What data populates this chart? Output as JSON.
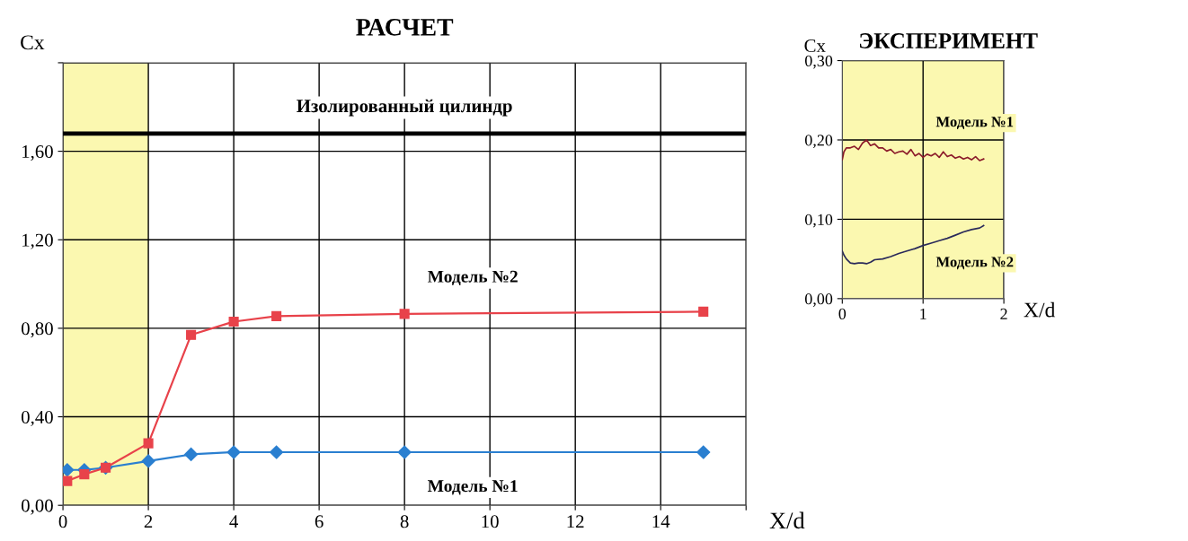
{
  "chart_data": [
    {
      "type": "line",
      "title": "РАСЧЕТ",
      "xlabel": "X/d",
      "ylabel": "Cx",
      "marker": "square",
      "grid": true,
      "legend": false,
      "xlim": [
        0,
        16
      ],
      "xticks": [
        0,
        2,
        4,
        6,
        8,
        10,
        12,
        14,
        {
          "value": 16,
          "label": null
        }
      ],
      "ylim": [
        0,
        2.0
      ],
      "yticks": [
        {
          "value": 0,
          "label": "0,00"
        },
        {
          "value": 0.4,
          "label": "0,40"
        },
        {
          "value": 0.8,
          "label": "0,80"
        },
        {
          "value": 1.2,
          "label": "1,20"
        },
        {
          "value": 1.6,
          "label": "1,60"
        },
        {
          "value": 2.0,
          "label": null
        }
      ],
      "ref_lines": [
        {
          "axis": "y",
          "value": 1.68,
          "label": "Изолированный цилиндр",
          "color": "#000000"
        }
      ],
      "bands": [
        {
          "axis": "x",
          "from": 0,
          "to": 2,
          "color": "#fbf8b0"
        }
      ],
      "series": [
        {
          "name": "Модель №2",
          "color": "#e8424a",
          "marker": "square",
          "x": [
            0.1,
            0.5,
            1,
            2,
            3,
            4,
            5,
            8,
            15
          ],
          "values": [
            0.11,
            0.14,
            0.17,
            0.28,
            0.77,
            0.83,
            0.855,
            0.865,
            0.875
          ]
        },
        {
          "name": "Модель №1",
          "color": "#2a7fd0",
          "marker": "diamond",
          "x": [
            0.1,
            0.5,
            1,
            2,
            3,
            4,
            5,
            8,
            15
          ],
          "values": [
            0.16,
            0.16,
            0.17,
            0.2,
            0.23,
            0.24,
            0.24,
            0.24,
            0.24
          ]
        }
      ]
    },
    {
      "type": "line",
      "title": "ЭКСПЕРИМЕНТ",
      "xlabel": "X/d",
      "ylabel": "Cx",
      "marker": "none",
      "grid": true,
      "legend": false,
      "xlim": [
        0,
        2
      ],
      "xticks": [
        0,
        1,
        2
      ],
      "ylim": [
        0,
        0.3
      ],
      "yticks": [
        {
          "value": 0,
          "label": "0,00"
        },
        {
          "value": 0.1,
          "label": "0,10"
        },
        {
          "value": 0.2,
          "label": "0,20"
        },
        {
          "value": 0.3,
          "label": "0,30"
        }
      ],
      "bands": [
        {
          "axis": "x",
          "from": 0,
          "to": 2,
          "color": "#fbf8b0"
        }
      ],
      "series": [
        {
          "name": "Модель №1",
          "color": "#8b1a2a",
          "x": [
            0,
            0.02,
            0.05,
            0.1,
            0.15,
            0.2,
            0.25,
            0.3,
            0.35,
            0.4,
            0.45,
            0.5,
            0.55,
            0.6,
            0.65,
            0.7,
            0.75,
            0.8,
            0.85,
            0.9,
            0.95,
            1.0,
            1.05,
            1.1,
            1.15,
            1.2,
            1.25,
            1.3,
            1.35,
            1.4,
            1.45,
            1.5,
            1.55,
            1.6,
            1.65,
            1.7,
            1.75
          ],
          "values": [
            0.175,
            0.185,
            0.19,
            0.19,
            0.192,
            0.188,
            0.196,
            0.2,
            0.193,
            0.195,
            0.19,
            0.19,
            0.186,
            0.188,
            0.183,
            0.185,
            0.186,
            0.182,
            0.188,
            0.18,
            0.183,
            0.178,
            0.182,
            0.18,
            0.183,
            0.178,
            0.185,
            0.179,
            0.181,
            0.177,
            0.179,
            0.176,
            0.178,
            0.175,
            0.179,
            0.174,
            0.176
          ]
        },
        {
          "name": "Модель №2",
          "color": "#2a2a5a",
          "x": [
            0,
            0.02,
            0.05,
            0.1,
            0.15,
            0.2,
            0.25,
            0.3,
            0.35,
            0.4,
            0.5,
            0.6,
            0.7,
            0.8,
            0.9,
            1.0,
            1.1,
            1.2,
            1.3,
            1.4,
            1.5,
            1.6,
            1.7,
            1.75
          ],
          "values": [
            0.06,
            0.055,
            0.05,
            0.045,
            0.044,
            0.045,
            0.045,
            0.044,
            0.046,
            0.049,
            0.05,
            0.053,
            0.057,
            0.06,
            0.063,
            0.067,
            0.07,
            0.073,
            0.076,
            0.08,
            0.084,
            0.087,
            0.089,
            0.092
          ]
        }
      ]
    }
  ]
}
